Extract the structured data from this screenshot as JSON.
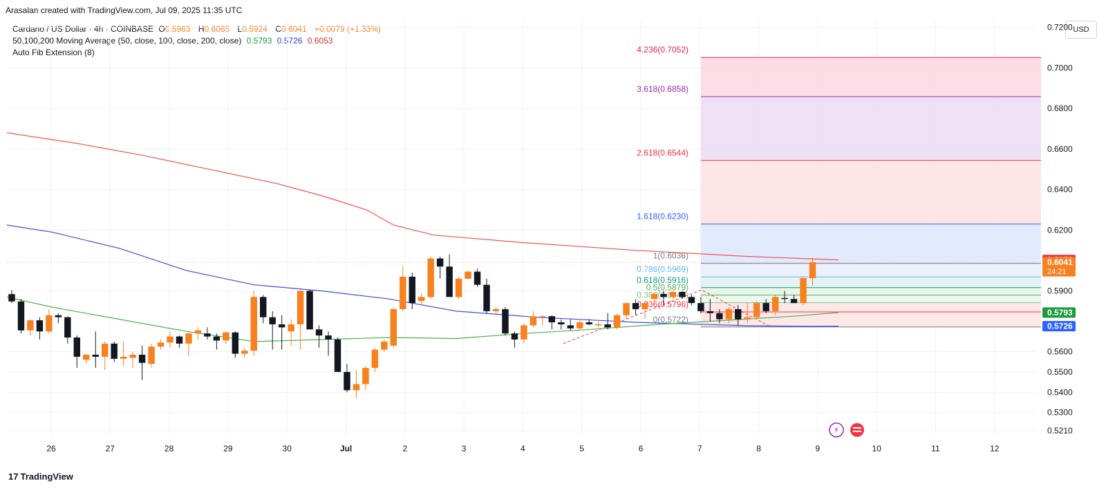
{
  "header": {
    "credit": "Arasalan created with TradingView.com, Jul 09, 2025 11:35 UTC"
  },
  "legend": {
    "symbol": "Cardano / US Dollar · 4h · COINBASE",
    "open_label": "O",
    "open": "0.5963",
    "high_label": "H",
    "high": "0.6065",
    "low_label": "L",
    "low": "0.5924",
    "close_label": "C",
    "close": "0.6041",
    "change": "+0.0079 (+1.33%)",
    "ma_label": "50,100,200 Moving Average (50, close, 100, close, 200, close)",
    "ma50": "0.5793",
    "ma100": "0.5726",
    "ma200": "0.6053",
    "fib_label": "Auto Fib Extension (8)"
  },
  "currency_button": "USD",
  "footer": {
    "brand": "TradingView",
    "mark": "17"
  },
  "colors": {
    "up": "#f7801f",
    "down": "#131722",
    "ma50": "#4caf50",
    "ma100": "#3d4ce0",
    "ma200": "#f0524f",
    "grid": "#f0f3fa"
  },
  "chart_data": {
    "type": "candlestick",
    "timeframe": "4h",
    "y_axis": {
      "ticks": [
        "0.7200",
        "0.7000",
        "0.6800",
        "0.6600",
        "0.6400",
        "0.6200",
        "0.5900",
        "0.5600",
        "0.5500",
        "0.5400",
        "0.5300",
        "0.5210"
      ],
      "range": [
        0.519,
        0.724
      ]
    },
    "x_axis": {
      "ticks": [
        "26",
        "27",
        "28",
        "29",
        "30",
        "Jul",
        "2",
        "3",
        "4",
        "5",
        "6",
        "7",
        "8",
        "9",
        "10",
        "11",
        "12"
      ]
    },
    "price_tags": [
      {
        "value": "0.6053",
        "price": 0.6053,
        "color": "#f23645",
        "countdown": ""
      },
      {
        "value": "0.6041",
        "price": 0.6041,
        "color": "#f7801f",
        "countdown": "24:21"
      },
      {
        "value": "0.5793",
        "price": 0.5793,
        "color": "#1b9b3a",
        "countdown": ""
      },
      {
        "value": "0.5726",
        "price": 0.5726,
        "color": "#2962ff",
        "countdown": ""
      }
    ],
    "fib_levels": [
      {
        "label": "4.236(0.7052)",
        "price": 0.7052,
        "color": "#e91e63"
      },
      {
        "label": "3.618(0.6858)",
        "price": 0.6858,
        "color": "#9c27b0"
      },
      {
        "label": "2.618(0.6544)",
        "price": 0.6544,
        "color": "#f23645"
      },
      {
        "label": "1.618(0.6230)",
        "price": 0.623,
        "color": "#2962ff"
      },
      {
        "label": "1(0.6036)",
        "price": 0.6036,
        "color": "#787b86"
      },
      {
        "label": "0.786(0.5969)",
        "price": 0.5969,
        "color": "#64b5f6"
      },
      {
        "label": "0.618(0.5916)",
        "price": 0.5916,
        "color": "#089981"
      },
      {
        "label": "0.5(0.5879)",
        "price": 0.5879,
        "color": "#4caf50"
      },
      {
        "label": "0.382(0.5842)",
        "price": 0.5842,
        "color": "#81c784"
      },
      {
        "label": "0.236(0.5796)",
        "price": 0.5796,
        "color": "#f23645"
      },
      {
        "label": "0(0.5722)",
        "price": 0.5722,
        "color": "#787b86"
      }
    ],
    "candles": [
      [
        0.5884,
        0.5904,
        0.584,
        0.5848
      ],
      [
        0.5848,
        0.586,
        0.569,
        0.5705
      ],
      [
        0.5705,
        0.576,
        0.568,
        0.5755
      ],
      [
        0.5755,
        0.577,
        0.566,
        0.57
      ],
      [
        0.57,
        0.581,
        0.569,
        0.578
      ],
      [
        0.578,
        0.579,
        0.574,
        0.577
      ],
      [
        0.577,
        0.5775,
        0.564,
        0.567
      ],
      [
        0.567,
        0.568,
        0.552,
        0.5575
      ],
      [
        0.556,
        0.559,
        0.554,
        0.5585
      ],
      [
        0.5585,
        0.57,
        0.552,
        0.5575
      ],
      [
        0.5575,
        0.565,
        0.551,
        0.564
      ],
      [
        0.564,
        0.565,
        0.555,
        0.5565
      ],
      [
        0.5565,
        0.565,
        0.553,
        0.5575
      ],
      [
        0.557,
        0.56,
        0.552,
        0.5585
      ],
      [
        0.5585,
        0.563,
        0.546,
        0.5545
      ],
      [
        0.554,
        0.564,
        0.552,
        0.5625
      ],
      [
        0.5625,
        0.566,
        0.561,
        0.5645
      ],
      [
        0.5645,
        0.57,
        0.562,
        0.5675
      ],
      [
        0.5675,
        0.568,
        0.562,
        0.564
      ],
      [
        0.564,
        0.57,
        0.558,
        0.569
      ],
      [
        0.569,
        0.572,
        0.566,
        0.5705
      ],
      [
        0.569,
        0.572,
        0.566,
        0.5675
      ],
      [
        0.5675,
        0.569,
        0.561,
        0.5655
      ],
      [
        0.5655,
        0.57,
        0.564,
        0.5695
      ],
      [
        0.5695,
        0.57,
        0.557,
        0.559
      ],
      [
        0.559,
        0.562,
        0.557,
        0.5605
      ],
      [
        0.5605,
        0.59,
        0.558,
        0.587
      ],
      [
        0.587,
        0.588,
        0.574,
        0.577
      ],
      [
        0.577,
        0.58,
        0.561,
        0.5735
      ],
      [
        0.5735,
        0.578,
        0.561,
        0.572
      ],
      [
        0.57,
        0.576,
        0.563,
        0.5735
      ],
      [
        0.5735,
        0.5905,
        0.561,
        0.59
      ],
      [
        0.59,
        0.5905,
        0.571,
        0.571
      ],
      [
        0.571,
        0.573,
        0.562,
        0.568
      ],
      [
        0.568,
        0.57,
        0.558,
        0.566
      ],
      [
        0.566,
        0.567,
        0.55,
        0.55
      ],
      [
        0.55,
        0.554,
        0.54,
        0.541
      ],
      [
        0.541,
        0.551,
        0.537,
        0.544
      ],
      [
        0.544,
        0.553,
        0.541,
        0.552
      ],
      [
        0.552,
        0.562,
        0.55,
        0.561
      ],
      [
        0.561,
        0.566,
        0.56,
        0.565
      ],
      [
        0.563,
        0.582,
        0.562,
        0.581
      ],
      [
        0.581,
        0.602,
        0.58,
        0.597
      ],
      [
        0.597,
        0.599,
        0.581,
        0.584
      ],
      [
        0.585,
        0.589,
        0.583,
        0.587
      ],
      [
        0.587,
        0.607,
        0.586,
        0.606
      ],
      [
        0.606,
        0.607,
        0.596,
        0.602
      ],
      [
        0.602,
        0.608,
        0.588,
        0.587
      ],
      [
        0.587,
        0.597,
        0.586,
        0.596
      ],
      [
        0.596,
        0.6,
        0.596,
        0.5995
      ],
      [
        0.5995,
        0.601,
        0.592,
        0.593
      ],
      [
        0.593,
        0.596,
        0.579,
        0.58
      ],
      [
        0.58,
        0.582,
        0.579,
        0.581
      ],
      [
        0.581,
        0.582,
        0.568,
        0.569
      ],
      [
        0.569,
        0.57,
        0.562,
        0.566
      ],
      [
        0.566,
        0.574,
        0.564,
        0.573
      ],
      [
        0.573,
        0.58,
        0.572,
        0.5775
      ],
      [
        0.577,
        0.578,
        0.573,
        0.5775
      ],
      [
        0.5775,
        0.578,
        0.571,
        0.5745
      ],
      [
        0.5745,
        0.576,
        0.571,
        0.5735
      ],
      [
        0.573,
        0.576,
        0.5705,
        0.5715
      ],
      [
        0.5715,
        0.576,
        0.571,
        0.5745
      ],
      [
        0.5745,
        0.576,
        0.573,
        0.5735
      ],
      [
        0.573,
        0.575,
        0.572,
        0.5735
      ],
      [
        0.5735,
        0.579,
        0.571,
        0.572
      ],
      [
        0.572,
        0.579,
        0.571,
        0.578
      ],
      [
        0.578,
        0.584,
        0.576,
        0.584
      ],
      [
        0.584,
        0.586,
        0.578,
        0.581
      ],
      [
        0.581,
        0.585,
        0.576,
        0.584
      ],
      [
        0.586,
        0.589,
        0.584,
        0.5885
      ],
      [
        0.5885,
        0.59,
        0.583,
        0.587
      ],
      [
        0.587,
        0.59,
        0.586,
        0.5895
      ],
      [
        0.5895,
        0.59,
        0.586,
        0.587
      ],
      [
        0.587,
        0.588,
        0.583,
        0.584
      ],
      [
        0.584,
        0.587,
        0.579,
        0.58
      ],
      [
        0.58,
        0.586,
        0.575,
        0.579
      ],
      [
        0.579,
        0.581,
        0.574,
        0.576
      ],
      [
        0.576,
        0.582,
        0.574,
        0.581
      ],
      [
        0.581,
        0.583,
        0.573,
        0.576
      ],
      [
        0.576,
        0.584,
        0.574,
        0.577
      ],
      [
        0.577,
        0.585,
        0.576,
        0.584
      ],
      [
        0.584,
        0.586,
        0.579,
        0.58
      ],
      [
        0.58,
        0.588,
        0.578,
        0.587
      ],
      [
        0.5865,
        0.59,
        0.584,
        0.586
      ],
      [
        0.586,
        0.588,
        0.584,
        0.584
      ],
      [
        0.584,
        0.597,
        0.583,
        0.5963
      ],
      [
        0.5963,
        0.6065,
        0.5924,
        0.6041
      ]
    ],
    "ma200": [
      [
        0,
        0.668
      ],
      [
        15,
        0.663
      ],
      [
        30,
        0.657
      ],
      [
        45,
        0.65
      ],
      [
        60,
        0.643
      ],
      [
        70,
        0.637
      ],
      [
        80,
        0.63
      ],
      [
        86,
        0.6225
      ],
      [
        95,
        0.6175
      ],
      [
        115,
        0.6138
      ],
      [
        140,
        0.61
      ],
      [
        165,
        0.607
      ],
      [
        185,
        0.6053
      ]
    ],
    "ma100": [
      [
        0,
        0.6225
      ],
      [
        10,
        0.619
      ],
      [
        25,
        0.611
      ],
      [
        40,
        0.6
      ],
      [
        55,
        0.593
      ],
      [
        70,
        0.59
      ],
      [
        85,
        0.586
      ],
      [
        100,
        0.58
      ],
      [
        118,
        0.577
      ],
      [
        140,
        0.5745
      ],
      [
        165,
        0.5728
      ],
      [
        178,
        0.5725
      ],
      [
        185,
        0.5726
      ]
    ],
    "ma50": [
      [
        0,
        0.587
      ],
      [
        10,
        0.582
      ],
      [
        25,
        0.576
      ],
      [
        40,
        0.57
      ],
      [
        55,
        0.565
      ],
      [
        70,
        0.566
      ],
      [
        85,
        0.567
      ],
      [
        100,
        0.5665
      ],
      [
        115,
        0.569
      ],
      [
        130,
        0.571
      ],
      [
        145,
        0.5735
      ],
      [
        160,
        0.5755
      ],
      [
        175,
        0.5775
      ],
      [
        185,
        0.5793
      ]
    ]
  }
}
